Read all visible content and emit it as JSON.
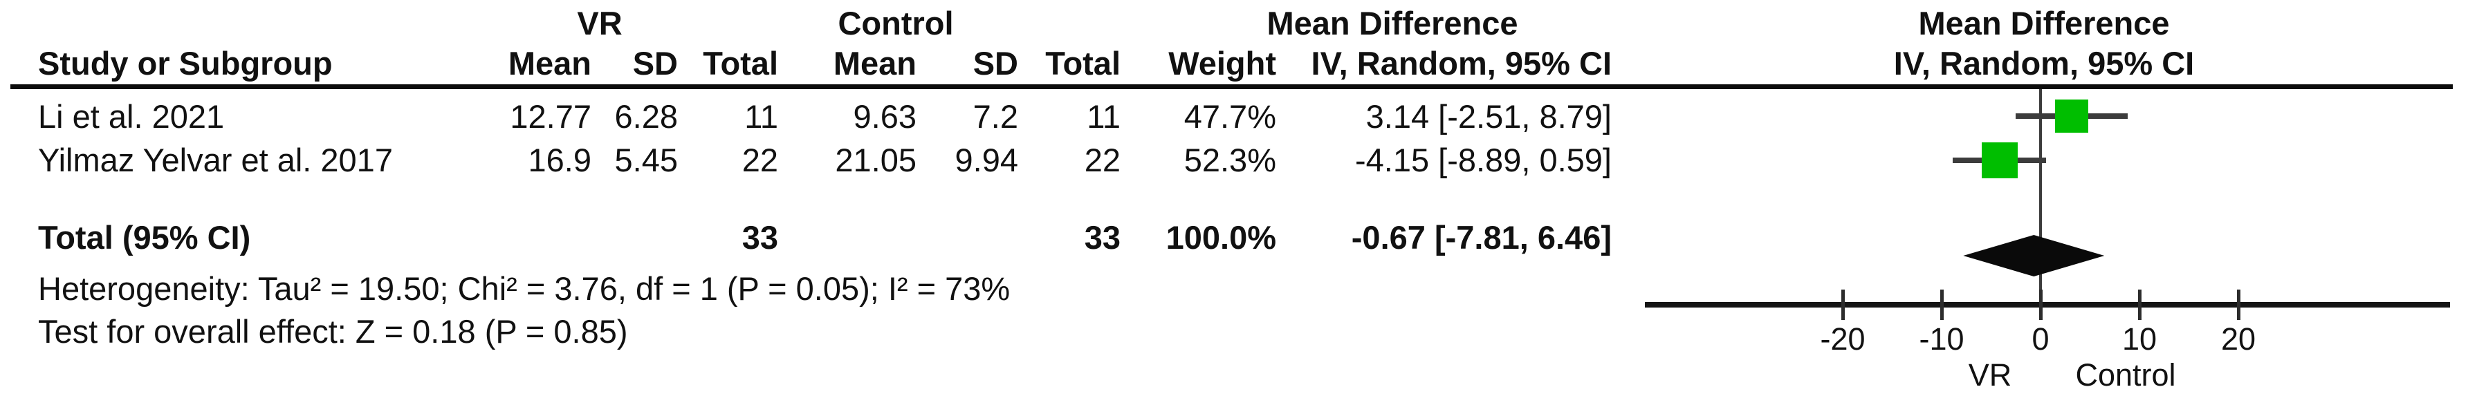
{
  "table": {
    "group_headers": {
      "vr": "VR",
      "control": "Control",
      "mean_difference": "Mean Difference",
      "mean_difference_plot": "Mean Difference"
    },
    "columns": {
      "study": "Study or Subgroup",
      "mean": "Mean",
      "sd": "SD",
      "total": "Total",
      "weight": "Weight",
      "iv": "IV, Random, 95% CI",
      "iv_plot": "IV, Random, 95% CI"
    },
    "rows": [
      {
        "study": "Li et al. 2021",
        "vr_mean": "12.77",
        "vr_sd": "6.28",
        "vr_total": "11",
        "c_mean": "9.63",
        "c_sd": "7.2",
        "c_total": "11",
        "weight": "47.7%",
        "ci": "3.14 [-2.51, 8.79]"
      },
      {
        "study": "Yilmaz Yelvar et al. 2017",
        "vr_mean": "16.9",
        "vr_sd": "5.45",
        "vr_total": "22",
        "c_mean": "21.05",
        "c_sd": "9.94",
        "c_total": "22",
        "weight": "52.3%",
        "ci": "-4.15 [-8.89, 0.59]"
      }
    ],
    "total_row": {
      "label": "Total (95% CI)",
      "vr_total": "33",
      "c_total": "33",
      "weight": "100.0%",
      "ci": "-0.67 [-7.81, 6.46]"
    },
    "heterogeneity": "Heterogeneity: Tau² = 19.50; Chi² = 3.76, df = 1 (P = 0.05); I² = 73%",
    "overall_effect": "Test for overall effect: Z = 0.18 (P = 0.85)"
  },
  "chart_data": {
    "type": "forest",
    "effect_measure": "Mean Difference",
    "method": "IV, Random, 95% CI",
    "studies": [
      {
        "name": "Li et al. 2021",
        "effect": 3.14,
        "ci_low": -2.51,
        "ci_high": 8.79,
        "weight_pct": 47.7
      },
      {
        "name": "Yilmaz Yelvar et al. 2017",
        "effect": -4.15,
        "ci_low": -8.89,
        "ci_high": 0.59,
        "weight_pct": 52.3
      }
    ],
    "total": {
      "label": "Total (95% CI)",
      "effect": -0.67,
      "ci_low": -7.81,
      "ci_high": 6.46,
      "weight_pct": 100.0
    },
    "heterogeneity": {
      "tau2": 19.5,
      "chi2": 3.76,
      "df": 1,
      "p": 0.05,
      "i2_pct": 73
    },
    "overall_effect": {
      "z": 0.18,
      "p": 0.85
    },
    "axis": {
      "min": -40,
      "max": 40,
      "ticks": [
        -20,
        -10,
        0,
        10,
        20
      ],
      "left_label": "VR",
      "right_label": "Control"
    },
    "marker_color": "#00be00",
    "diamond_color": "#0a0a0a"
  }
}
